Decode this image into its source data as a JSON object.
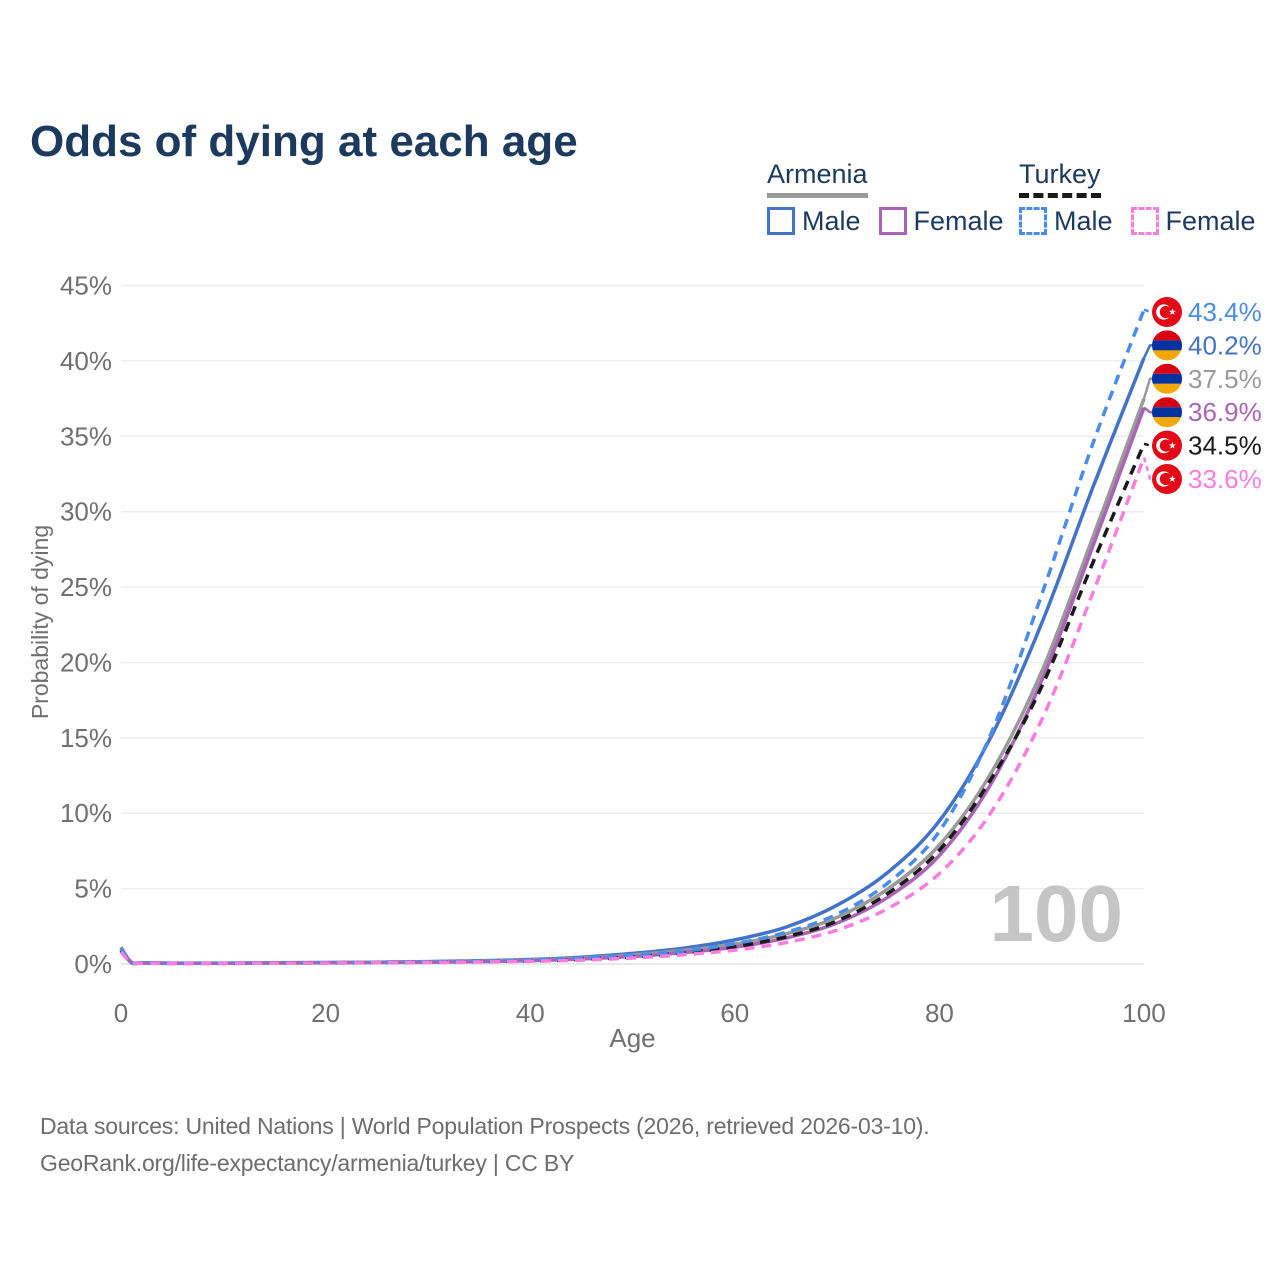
{
  "page": {
    "title": "Odds of dying at each age"
  },
  "legend": {
    "armenia": {
      "label": "Armenia",
      "male": "Male",
      "female": "Female"
    },
    "turkey": {
      "label": "Turkey",
      "male": "Male",
      "female": "Female"
    }
  },
  "watermark": "100",
  "footer": {
    "line1": "Data sources: United Nations | World Population Prospects (2026, retrieved 2026-03-10).",
    "line2": "GeoRank.org/life-expectancy/armenia/turkey | CC BY"
  },
  "colors": {
    "title_text": "#1c3a5e",
    "axis_text": "#707070",
    "gridline": "#ededed",
    "baseline": "#e0e0e0",
    "watermark": "#c5c5c5",
    "footer_text": "#6d6d6d",
    "flag_turkey_red": "#e30a17",
    "flag_armenia_red": "#d90012",
    "flag_armenia_blue": "#0033a0",
    "flag_armenia_orange": "#f2a800"
  },
  "chart_data": {
    "type": "line",
    "title": "Odds of dying at each age",
    "xlabel": "Age",
    "ylabel": "Probability of dying",
    "xlim": [
      0,
      100
    ],
    "ylim": [
      0,
      45
    ],
    "grid": true,
    "x_ticks": [
      0,
      20,
      40,
      60,
      80,
      100
    ],
    "y_ticks": [
      {
        "value": 0,
        "label": "0%"
      },
      {
        "value": 5,
        "label": "5%"
      },
      {
        "value": 10,
        "label": "10%"
      },
      {
        "value": 15,
        "label": "15%"
      },
      {
        "value": 20,
        "label": "20%"
      },
      {
        "value": 25,
        "label": "25%"
      },
      {
        "value": 30,
        "label": "30%"
      },
      {
        "value": 35,
        "label": "35%"
      },
      {
        "value": 40,
        "label": "40%"
      },
      {
        "value": 45,
        "label": "45%"
      }
    ],
    "series": [
      {
        "name": "Armenia Male",
        "country": "Armenia",
        "sex": "Male",
        "color": "#4273c8",
        "dashed": false,
        "flag": "armenia",
        "end_value": 40.2,
        "end_label": "40.2%",
        "points": [
          [
            0,
            1.1
          ],
          [
            1,
            0.12
          ],
          [
            2,
            0.08
          ],
          [
            5,
            0.06
          ],
          [
            10,
            0.06
          ],
          [
            15,
            0.08
          ],
          [
            20,
            0.1
          ],
          [
            25,
            0.12
          ],
          [
            30,
            0.16
          ],
          [
            35,
            0.22
          ],
          [
            40,
            0.3
          ],
          [
            45,
            0.45
          ],
          [
            50,
            0.7
          ],
          [
            55,
            1.05
          ],
          [
            60,
            1.6
          ],
          [
            65,
            2.45
          ],
          [
            70,
            3.9
          ],
          [
            75,
            6.1
          ],
          [
            80,
            9.5
          ],
          [
            85,
            15.0
          ],
          [
            90,
            22.6
          ],
          [
            95,
            31.6
          ],
          [
            100,
            40.2
          ]
        ]
      },
      {
        "name": "Armenia Both sexes",
        "country": "Armenia",
        "sex": "Both",
        "color": "#9a9a9a",
        "dashed": false,
        "flag": "armenia",
        "end_value": 37.5,
        "end_label": "37.5%",
        "points": [
          [
            0,
            1.05
          ],
          [
            1,
            0.11
          ],
          [
            2,
            0.07
          ],
          [
            5,
            0.05
          ],
          [
            10,
            0.05
          ],
          [
            15,
            0.07
          ],
          [
            20,
            0.09
          ],
          [
            25,
            0.11
          ],
          [
            30,
            0.14
          ],
          [
            35,
            0.19
          ],
          [
            40,
            0.26
          ],
          [
            45,
            0.39
          ],
          [
            50,
            0.6
          ],
          [
            55,
            0.9
          ],
          [
            60,
            1.32
          ],
          [
            65,
            2.0
          ],
          [
            70,
            3.1
          ],
          [
            75,
            5.0
          ],
          [
            80,
            7.9
          ],
          [
            85,
            12.6
          ],
          [
            90,
            19.4
          ],
          [
            95,
            28.3
          ],
          [
            100,
            37.5
          ]
        ]
      },
      {
        "name": "Armenia Female",
        "country": "Armenia",
        "sex": "Female",
        "color": "#ab63b8",
        "dashed": false,
        "flag": "armenia",
        "end_value": 36.9,
        "end_label": "36.9%",
        "points": [
          [
            0,
            0.95
          ],
          [
            1,
            0.1
          ],
          [
            2,
            0.06
          ],
          [
            5,
            0.04
          ],
          [
            10,
            0.05
          ],
          [
            15,
            0.06
          ],
          [
            20,
            0.08
          ],
          [
            25,
            0.1
          ],
          [
            30,
            0.12
          ],
          [
            35,
            0.16
          ],
          [
            40,
            0.22
          ],
          [
            45,
            0.33
          ],
          [
            50,
            0.5
          ],
          [
            55,
            0.76
          ],
          [
            60,
            1.12
          ],
          [
            65,
            1.72
          ],
          [
            70,
            2.72
          ],
          [
            75,
            4.45
          ],
          [
            80,
            7.2
          ],
          [
            85,
            11.9
          ],
          [
            90,
            18.8
          ],
          [
            95,
            27.7
          ],
          [
            100,
            36.9
          ]
        ]
      },
      {
        "name": "Turkey Both sexes",
        "country": "Turkey",
        "sex": "Both",
        "color": "#1a1a1a",
        "dashed": true,
        "flag": "turkey",
        "end_value": 34.5,
        "end_label": "34.5%",
        "points": [
          [
            0,
            0.9
          ],
          [
            1,
            0.09
          ],
          [
            2,
            0.06
          ],
          [
            5,
            0.04
          ],
          [
            10,
            0.04
          ],
          [
            15,
            0.06
          ],
          [
            20,
            0.07
          ],
          [
            25,
            0.09
          ],
          [
            30,
            0.12
          ],
          [
            35,
            0.16
          ],
          [
            40,
            0.21
          ],
          [
            45,
            0.32
          ],
          [
            50,
            0.48
          ],
          [
            55,
            0.74
          ],
          [
            60,
            1.15
          ],
          [
            65,
            1.8
          ],
          [
            70,
            2.85
          ],
          [
            75,
            4.7
          ],
          [
            80,
            7.55
          ],
          [
            85,
            12.2
          ],
          [
            90,
            18.4
          ],
          [
            95,
            26.6
          ],
          [
            100,
            34.5
          ]
        ]
      },
      {
        "name": "Turkey Male",
        "country": "Turkey",
        "sex": "Male",
        "color": "#4a8cea",
        "dashed": true,
        "flag": "turkey",
        "end_value": 43.4,
        "end_label": "43.4%",
        "points": [
          [
            0,
            1.0
          ],
          [
            1,
            0.1
          ],
          [
            2,
            0.06
          ],
          [
            5,
            0.05
          ],
          [
            10,
            0.05
          ],
          [
            15,
            0.07
          ],
          [
            20,
            0.08
          ],
          [
            25,
            0.1
          ],
          [
            30,
            0.13
          ],
          [
            35,
            0.18
          ],
          [
            40,
            0.25
          ],
          [
            45,
            0.38
          ],
          [
            50,
            0.58
          ],
          [
            55,
            0.85
          ],
          [
            60,
            1.35
          ],
          [
            65,
            2.1
          ],
          [
            70,
            3.3
          ],
          [
            75,
            5.4
          ],
          [
            80,
            8.8
          ],
          [
            85,
            15.2
          ],
          [
            90,
            24.5
          ],
          [
            95,
            34.5
          ],
          [
            100,
            43.4
          ]
        ]
      },
      {
        "name": "Turkey Female",
        "country": "Turkey",
        "sex": "Female",
        "color": "#fb7ce0",
        "dashed": true,
        "flag": "turkey",
        "end_value": 33.6,
        "end_label": "33.6%",
        "points": [
          [
            0,
            0.8
          ],
          [
            1,
            0.08
          ],
          [
            2,
            0.05
          ],
          [
            5,
            0.03
          ],
          [
            10,
            0.04
          ],
          [
            15,
            0.05
          ],
          [
            20,
            0.06
          ],
          [
            25,
            0.08
          ],
          [
            30,
            0.1
          ],
          [
            35,
            0.13
          ],
          [
            40,
            0.18
          ],
          [
            45,
            0.26
          ],
          [
            50,
            0.4
          ],
          [
            55,
            0.62
          ],
          [
            60,
            0.92
          ],
          [
            65,
            1.42
          ],
          [
            70,
            2.25
          ],
          [
            75,
            3.7
          ],
          [
            80,
            6.0
          ],
          [
            85,
            10.0
          ],
          [
            90,
            16.2
          ],
          [
            95,
            24.6
          ],
          [
            100,
            33.6
          ]
        ]
      }
    ],
    "legend_position": "top-right",
    "end_labels_sorted_desc": [
      "43.4%",
      "40.2%",
      "37.5%",
      "36.9%",
      "34.5%",
      "33.6%"
    ]
  }
}
